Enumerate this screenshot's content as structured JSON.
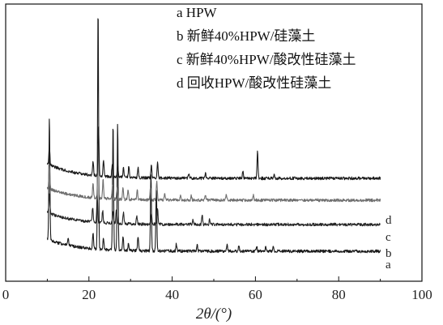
{
  "chart_data": {
    "type": "line",
    "title": "",
    "xlabel": "2θ/(°)",
    "ylabel": "",
    "xlim": [
      0,
      100
    ],
    "x_ticks": [
      0,
      20,
      40,
      60,
      80,
      100
    ],
    "x_tick_labels": [
      "0",
      "20",
      "40",
      "60",
      "80",
      "100"
    ],
    "grid": false,
    "legend": {
      "placement": "top-right",
      "entries": [
        "a HPW",
        "b 新鲜40%HPW/硅藻土",
        "c 新鲜40%HPW/酸改性硅藻土",
        "d 回收HPW/酸改性硅藻土"
      ]
    },
    "x_range": [
      10,
      90
    ],
    "y_units": "relative intensity (arbitrary, no axis scale shown)",
    "series": [
      {
        "name": "a",
        "color": "#1a1a1a",
        "baseline": 0.1,
        "decay": 0.05,
        "peaks": [
          [
            10.5,
            0.5
          ],
          [
            15.0,
            0.03
          ],
          [
            21.0,
            0.07
          ],
          [
            22.2,
            1.0
          ],
          [
            23.5,
            0.05
          ],
          [
            25.8,
            0.52
          ],
          [
            26.9,
            0.52
          ],
          [
            28.2,
            0.06
          ],
          [
            29.5,
            0.03
          ],
          [
            31.8,
            0.06
          ],
          [
            34.9,
            0.32
          ],
          [
            36.2,
            0.26
          ],
          [
            41.0,
            0.03
          ],
          [
            46.0,
            0.03
          ],
          [
            53.2,
            0.03
          ],
          [
            56.0,
            0.02
          ],
          [
            60.3,
            0.02
          ],
          [
            62.5,
            0.02
          ],
          [
            64.3,
            0.02
          ]
        ]
      },
      {
        "name": "b",
        "color": "#262626",
        "baseline": 0.21,
        "decay": 0.05,
        "peaks": [
          [
            10.5,
            0.08
          ],
          [
            20.9,
            0.06
          ],
          [
            22.0,
            0.11
          ],
          [
            23.3,
            0.05
          ],
          [
            25.8,
            0.05
          ],
          [
            26.6,
            0.06
          ],
          [
            28.3,
            0.05
          ],
          [
            31.5,
            0.03
          ],
          [
            35.0,
            0.04
          ],
          [
            36.5,
            0.06
          ],
          [
            45.0,
            0.02
          ],
          [
            47.2,
            0.04
          ],
          [
            49.0,
            0.02
          ]
        ]
      },
      {
        "name": "c",
        "color": "#6e6e6e",
        "baseline": 0.31,
        "decay": 0.05,
        "peaks": [
          [
            10.5,
            0.1
          ],
          [
            21.0,
            0.06
          ],
          [
            22.2,
            0.23
          ],
          [
            23.4,
            0.08
          ],
          [
            25.7,
            0.06
          ],
          [
            26.8,
            0.05
          ],
          [
            28.2,
            0.05
          ],
          [
            29.4,
            0.04
          ],
          [
            31.6,
            0.04
          ],
          [
            34.8,
            0.05
          ],
          [
            36.3,
            0.08
          ],
          [
            38.2,
            0.03
          ],
          [
            42.0,
            0.02
          ],
          [
            44.6,
            0.02
          ],
          [
            48.0,
            0.02
          ],
          [
            53.0,
            0.02
          ],
          [
            59.5,
            0.02
          ]
        ]
      },
      {
        "name": "d",
        "color": "#1a1a1a",
        "baseline": 0.4,
        "decay": 0.06,
        "peaks": [
          [
            10.5,
            0.08
          ],
          [
            21.0,
            0.06
          ],
          [
            22.3,
            0.21
          ],
          [
            23.5,
            0.07
          ],
          [
            25.6,
            0.05
          ],
          [
            26.9,
            0.05
          ],
          [
            28.3,
            0.04
          ],
          [
            29.6,
            0.05
          ],
          [
            31.8,
            0.04
          ],
          [
            35.0,
            0.05
          ],
          [
            36.5,
            0.07
          ],
          [
            44.0,
            0.02
          ],
          [
            48.0,
            0.02
          ],
          [
            57.0,
            0.03
          ],
          [
            60.5,
            0.11
          ],
          [
            64.5,
            0.02
          ]
        ]
      }
    ],
    "curve_labels": [
      "a",
      "b",
      "c",
      "d"
    ]
  }
}
